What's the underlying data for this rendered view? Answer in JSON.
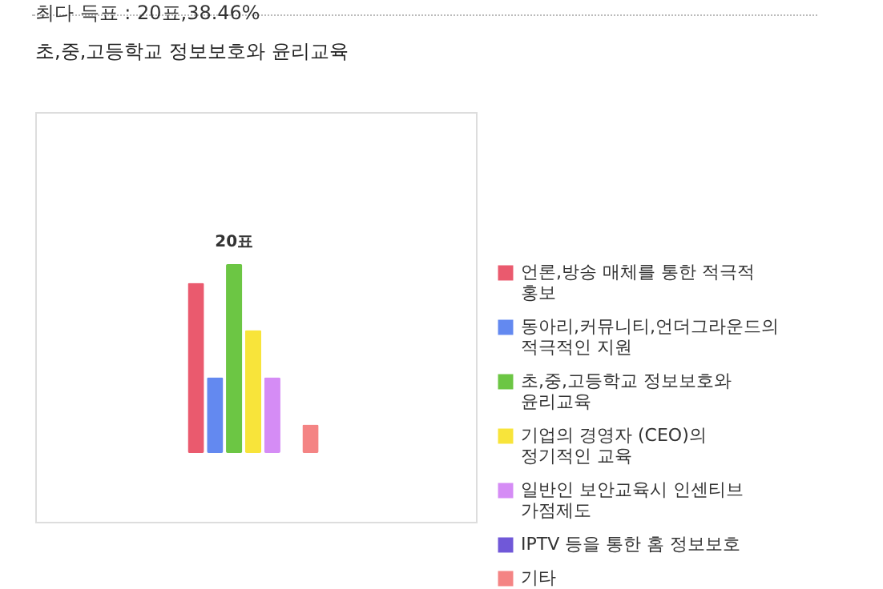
{
  "chart_data": {
    "type": "bar",
    "title": "최다 득표 : 20표,38.46%",
    "subtitle": "초,중,고등학교 정보보호와 윤리교육",
    "categories": [
      null
    ],
    "tick_labels": false,
    "series": [
      {
        "name": "언론,방송 매체를 통한 적극적 홍보",
        "color": "#ea5a6e",
        "values": [
          18
        ]
      },
      {
        "name": "동아리,커뮤니티,언더그라운드의 적극적인 지원",
        "color": "#6389f0",
        "values": [
          8
        ]
      },
      {
        "name": "초,중,고등학교 정보보호와 윤리교육",
        "color": "#6cc644",
        "values": [
          20
        ],
        "value_labels": [
          "20표"
        ]
      },
      {
        "name": "기업의 경영자 (CEO)의 정기적인 교육",
        "color": "#f8e43a",
        "values": [
          13
        ]
      },
      {
        "name": "일반인 보안교육시 인센티브 가점제도",
        "color": "#d58cf5",
        "values": [
          8
        ]
      },
      {
        "name": "IPTV 등을 통한 홈 정보보호",
        "color": "#7058d8",
        "values": [
          0
        ]
      },
      {
        "name": "기타",
        "color": "#f48484",
        "values": [
          3
        ]
      }
    ],
    "legend": "right"
  }
}
